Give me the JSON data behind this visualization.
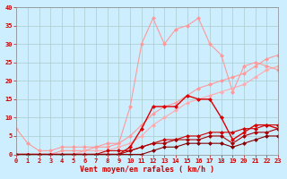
{
  "title": "",
  "xlabel": "Vent moyen/en rafales ( km/h )",
  "ylabel": "",
  "background_color": "#cceeff",
  "grid_color": "#aacccc",
  "xlim": [
    0,
    23
  ],
  "ylim": [
    0,
    40
  ],
  "xticks": [
    0,
    1,
    2,
    3,
    4,
    5,
    6,
    7,
    8,
    9,
    10,
    11,
    12,
    13,
    14,
    15,
    16,
    17,
    18,
    19,
    20,
    21,
    22,
    23
  ],
  "yticks": [
    0,
    5,
    10,
    15,
    20,
    25,
    30,
    35,
    40
  ],
  "lines": [
    {
      "x": [
        0,
        1,
        2,
        3,
        4,
        5,
        6,
        7,
        8,
        9,
        10,
        11,
        12,
        13,
        14,
        15,
        16,
        17,
        18,
        19,
        20,
        21,
        22,
        23
      ],
      "y": [
        7,
        3,
        1,
        1,
        2,
        2,
        2,
        2,
        3,
        3,
        13,
        30,
        37,
        30,
        34,
        35,
        37,
        30,
        27,
        17,
        24,
        25,
        24,
        23
      ],
      "color": "#ff9999",
      "marker": "D",
      "lw": 0.8,
      "ms": 2.5
    },
    {
      "x": [
        0,
        1,
        2,
        3,
        4,
        5,
        6,
        7,
        8,
        9,
        10,
        11,
        12,
        13,
        14,
        15,
        16,
        17,
        18,
        19,
        20,
        21,
        22,
        23
      ],
      "y": [
        0,
        0,
        0,
        0,
        1,
        1,
        1,
        2,
        2,
        3,
        5,
        8,
        11,
        13,
        14,
        16,
        18,
        19,
        20,
        21,
        22,
        24,
        26,
        27
      ],
      "color": "#ff9999",
      "marker": "D",
      "lw": 0.8,
      "ms": 2.5
    },
    {
      "x": [
        0,
        1,
        2,
        3,
        4,
        5,
        6,
        7,
        8,
        9,
        10,
        11,
        12,
        13,
        14,
        15,
        16,
        17,
        18,
        19,
        20,
        21,
        22,
        23
      ],
      "y": [
        0,
        0,
        0,
        0,
        0,
        0,
        1,
        1,
        1,
        2,
        3,
        5,
        8,
        10,
        12,
        14,
        15,
        16,
        17,
        18,
        19,
        21,
        23,
        24
      ],
      "color": "#ffaaaa",
      "marker": "D",
      "lw": 0.8,
      "ms": 2.5
    },
    {
      "x": [
        0,
        1,
        2,
        3,
        4,
        5,
        6,
        7,
        8,
        9,
        10,
        11,
        12,
        13,
        14,
        15,
        16,
        17,
        18,
        19,
        20,
        21,
        22,
        23
      ],
      "y": [
        0,
        0,
        0,
        0,
        0,
        0,
        0,
        0,
        0,
        0,
        2,
        7,
        13,
        13,
        13,
        16,
        15,
        15,
        10,
        4,
        6,
        8,
        8,
        7
      ],
      "color": "#dd0000",
      "marker": "D",
      "lw": 1.0,
      "ms": 2.5
    },
    {
      "x": [
        0,
        1,
        2,
        3,
        4,
        5,
        6,
        7,
        8,
        9,
        10,
        11,
        12,
        13,
        14,
        15,
        16,
        17,
        18,
        19,
        20,
        21,
        22,
        23
      ],
      "y": [
        0,
        0,
        0,
        0,
        0,
        0,
        0,
        0,
        1,
        1,
        1,
        2,
        3,
        4,
        4,
        5,
        5,
        6,
        6,
        6,
        7,
        7,
        8,
        8
      ],
      "color": "#cc0000",
      "marker": "D",
      "lw": 0.8,
      "ms": 2.5
    },
    {
      "x": [
        0,
        1,
        2,
        3,
        4,
        5,
        6,
        7,
        8,
        9,
        10,
        11,
        12,
        13,
        14,
        15,
        16,
        17,
        18,
        19,
        20,
        21,
        22,
        23
      ],
      "y": [
        0,
        0,
        0,
        0,
        0,
        0,
        0,
        0,
        0,
        0,
        1,
        2,
        3,
        3,
        4,
        4,
        4,
        5,
        5,
        3,
        5,
        6,
        6,
        7
      ],
      "color": "#aa0000",
      "marker": "D",
      "lw": 0.8,
      "ms": 2.5
    },
    {
      "x": [
        0,
        1,
        2,
        3,
        4,
        5,
        6,
        7,
        8,
        9,
        10,
        11,
        12,
        13,
        14,
        15,
        16,
        17,
        18,
        19,
        20,
        21,
        22,
        23
      ],
      "y": [
        0,
        0,
        0,
        0,
        0,
        0,
        0,
        0,
        0,
        0,
        0,
        0,
        1,
        2,
        2,
        3,
        3,
        3,
        3,
        2,
        3,
        4,
        5,
        5
      ],
      "color": "#880000",
      "marker": "D",
      "lw": 0.8,
      "ms": 2.5
    }
  ]
}
